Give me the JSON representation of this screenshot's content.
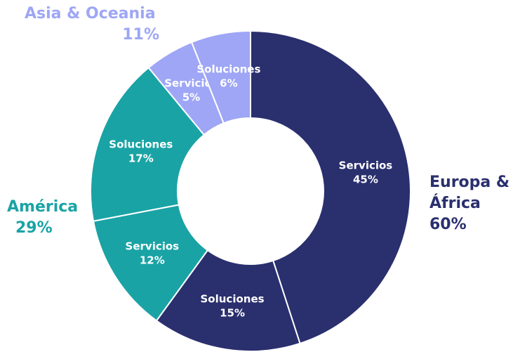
{
  "chart_data": {
    "type": "donut",
    "categories": [
      "Servicios",
      "Soluciones",
      "Servicios",
      "Soluciones",
      "Servicios",
      "Soluciones"
    ],
    "values": [
      45,
      15,
      12,
      17,
      5,
      6
    ],
    "value_labels": [
      "45%",
      "15%",
      "12%",
      "17%",
      "5%",
      "6%"
    ],
    "colors": [
      "#2a2f6e",
      "#2a2f6e",
      "#1aa3a5",
      "#1aa3a5",
      "#9ea6f5",
      "#9ea6f5"
    ],
    "groups": [
      {
        "name": "Europa & África",
        "value": 60,
        "value_label": "60%",
        "color": "#2a2f6e"
      },
      {
        "name": "América",
        "value": 29,
        "value_label": "29%",
        "color": "#1aa3a5"
      },
      {
        "name": "Asia & Oceania",
        "value": 11,
        "value_label": "11%",
        "color": "#9ea6f5"
      }
    ]
  }
}
